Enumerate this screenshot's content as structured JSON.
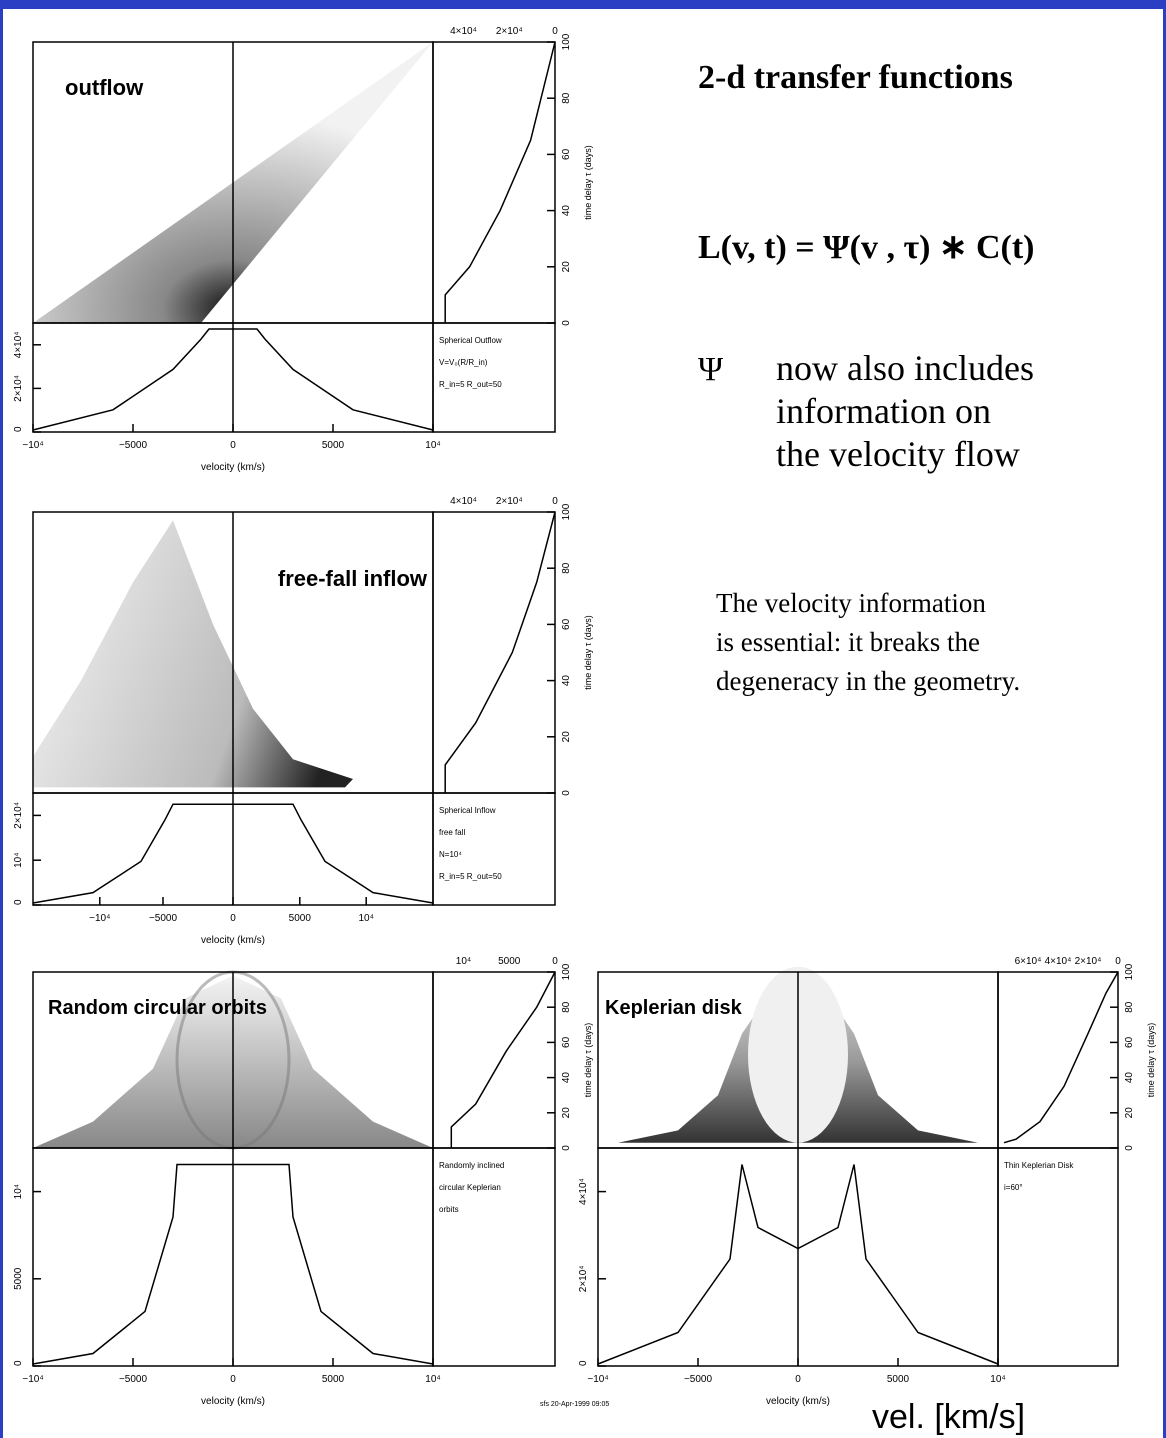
{
  "slide": {
    "title": "2-d  transfer functions",
    "equation": "L(v, t) = Ψ(v , τ) ∗ C(t)",
    "psi_symbol": "Ψ",
    "psi_note": [
      "now also includes",
      "information on",
      "the velocity flow"
    ],
    "velocity_note": [
      "The velocity information",
      "is essential: it breaks the",
      "degeneracy in the geometry."
    ],
    "footer_axis": "vel. [km/s]",
    "credit": "sfs 20-Apr-1999 09:05"
  },
  "panels": [
    {
      "label": "outflow",
      "legend": [
        "Spherical Outflow",
        "V=V₀(R/R_in)",
        "R_in=5  R_out=50"
      ],
      "x_ticks": [
        "−10⁴",
        "−5000",
        "0",
        "5000",
        "10⁴"
      ],
      "x_label": "velocity  (km/s)",
      "delay_ticks": [
        "0",
        "20",
        "40",
        "60",
        "80",
        "100"
      ],
      "delay_label": "time delay τ (days)",
      "top_ticks": [
        "4×10⁴",
        "2×10⁴",
        "0"
      ],
      "flux_ticks": [
        "0",
        "2×10⁴",
        "4×10⁴"
      ]
    },
    {
      "label": "free-fall inflow",
      "legend": [
        "Spherical Inflow",
        "free fall",
        "N=10⁴",
        "R_in=5 R_out=50"
      ],
      "x_ticks": [
        "−10⁴",
        "−5000",
        "0",
        "5000",
        "10⁴"
      ],
      "x_label": "velocity  (km/s)",
      "delay_ticks": [
        "0",
        "20",
        "40",
        "60",
        "80",
        "100"
      ],
      "delay_label": "time delay τ (days)",
      "top_ticks": [
        "4×10⁴",
        "2×10⁴",
        "0"
      ],
      "flux_ticks": [
        "0",
        "10⁴",
        "2×10⁴"
      ]
    },
    {
      "label": "Random circular orbits",
      "legend": [
        "Randomly inclined",
        "circular Keplerian",
        "orbits"
      ],
      "x_ticks": [
        "−10⁴",
        "−5000",
        "0",
        "5000",
        "10⁴"
      ],
      "x_label": "velocity  (km/s)",
      "delay_ticks": [
        "0",
        "20",
        "40",
        "60",
        "80",
        "100"
      ],
      "delay_label": "time delay τ (days)",
      "top_ticks": [
        "10⁴",
        "5000",
        "0"
      ],
      "flux_ticks": [
        "0",
        "5000",
        "10⁴"
      ]
    },
    {
      "label": "Keplerian disk",
      "legend": [
        "Thin Keplerian Disk",
        "i=60°"
      ],
      "x_ticks": [
        "−10⁴",
        "−5000",
        "0",
        "5000",
        "10⁴"
      ],
      "x_label": "velocity  (km/s)",
      "delay_ticks": [
        "0",
        "20",
        "40",
        "60",
        "80",
        "100"
      ],
      "delay_label": "time delay τ (days)",
      "top_ticks": [
        "6×10⁴",
        "4×10⁴",
        "2×10⁴",
        "0"
      ],
      "flux_ticks": [
        "0",
        "2×10⁴",
        "4×10⁴"
      ]
    }
  ]
}
